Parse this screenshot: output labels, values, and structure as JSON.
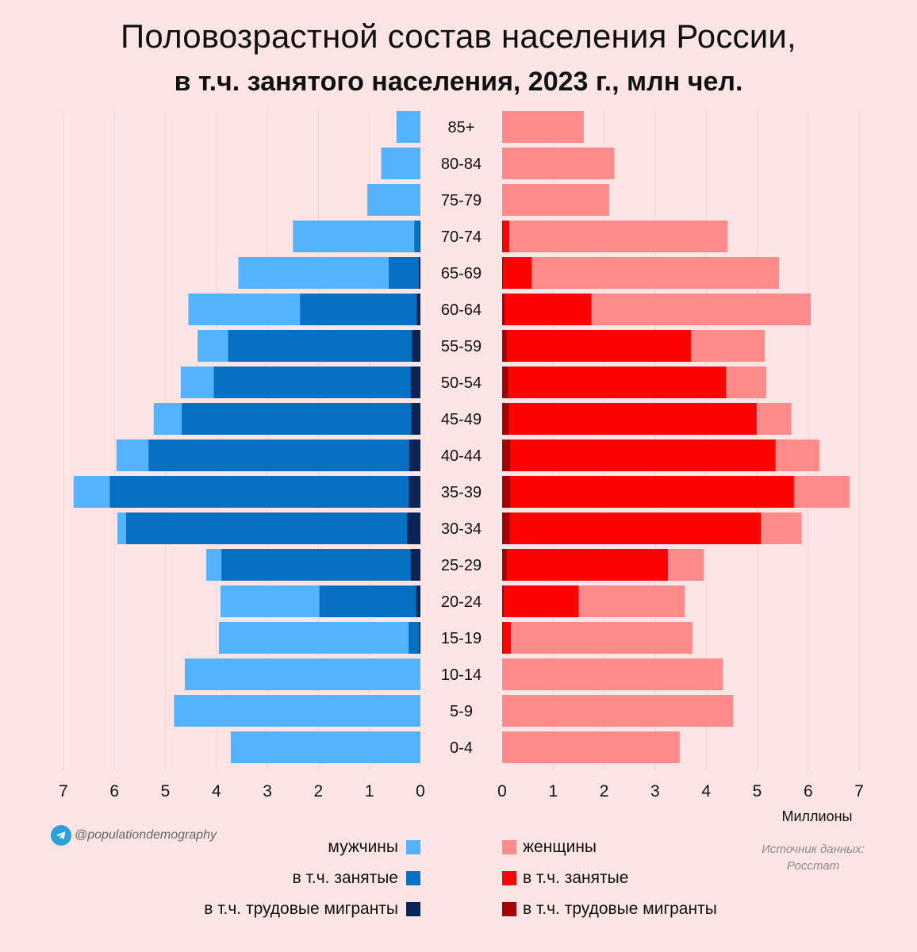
{
  "title": "Половозрастной состав населения России,",
  "subtitle": "в т.ч. занятого населения, 2023 г., млн чел.",
  "brand": "@populationdemography",
  "units_label": "Миллионы",
  "source_line1": "Источник данных:",
  "source_line2": "Росстат",
  "legend": {
    "men": "мужчины",
    "men_employed": "в т.ч. занятые",
    "men_migrants": "в т.ч. трудовые мигранты",
    "women": "женщины",
    "women_employed": "в т.ч. занятые",
    "women_migrants": "в т.ч. трудовые мигранты"
  },
  "colors": {
    "men": "#53b3fd",
    "men_employed": "#0670c2",
    "men_migrants": "#0b2456",
    "women": "#ff8b8a",
    "women_employed": "#fe0202",
    "women_migrants": "#a20303"
  },
  "chart_data": {
    "type": "bar",
    "orientation": "horizontal",
    "layout": "population pyramid",
    "categories": [
      "85+",
      "80-84",
      "75-79",
      "70-74",
      "65-69",
      "60-64",
      "55-59",
      "50-54",
      "45-49",
      "40-44",
      "35-39",
      "30-34",
      "25-29",
      "20-24",
      "15-19",
      "10-14",
      "5-9",
      "0-4"
    ],
    "x_ticks": [
      0,
      1,
      2,
      3,
      4,
      5,
      6,
      7
    ],
    "xlim": [
      0,
      7
    ],
    "grid": true,
    "series": [
      {
        "name": "мужчины",
        "side": "left",
        "values": [
          0.47,
          0.77,
          1.04,
          2.5,
          3.57,
          4.55,
          4.37,
          4.7,
          5.23,
          5.96,
          6.8,
          5.94,
          4.2,
          3.92,
          3.95,
          4.62,
          4.83,
          3.72
        ]
      },
      {
        "name": "в т.ч. занятые",
        "side": "left",
        "values": [
          0,
          0,
          0,
          0.12,
          0.62,
          2.36,
          3.77,
          4.05,
          4.68,
          5.33,
          6.09,
          5.77,
          3.9,
          1.98,
          0.23,
          0,
          0,
          0
        ]
      },
      {
        "name": "в т.ч. трудовые мигранты",
        "side": "left",
        "values": [
          0,
          0,
          0,
          0.01,
          0.03,
          0.07,
          0.17,
          0.19,
          0.18,
          0.22,
          0.23,
          0.26,
          0.19,
          0.08,
          0.02,
          0,
          0,
          0
        ]
      },
      {
        "name": "женщины",
        "side": "right",
        "values": [
          1.6,
          2.2,
          2.1,
          4.42,
          5.43,
          6.05,
          5.15,
          5.18,
          5.67,
          6.22,
          6.81,
          5.87,
          3.95,
          3.58,
          3.73,
          4.33,
          4.53,
          3.48
        ]
      },
      {
        "name": "в т.ч. занятые",
        "side": "right",
        "values": [
          0,
          0,
          0,
          0.14,
          0.58,
          1.75,
          3.7,
          4.39,
          4.99,
          5.36,
          5.72,
          5.07,
          3.25,
          1.5,
          0.17,
          0,
          0,
          0
        ]
      },
      {
        "name": "в т.ч. трудовые мигранты",
        "side": "right",
        "values": [
          0,
          0,
          0,
          0.01,
          0.02,
          0.05,
          0.09,
          0.12,
          0.13,
          0.16,
          0.16,
          0.15,
          0.09,
          0.03,
          0.01,
          0,
          0,
          0
        ]
      }
    ]
  }
}
